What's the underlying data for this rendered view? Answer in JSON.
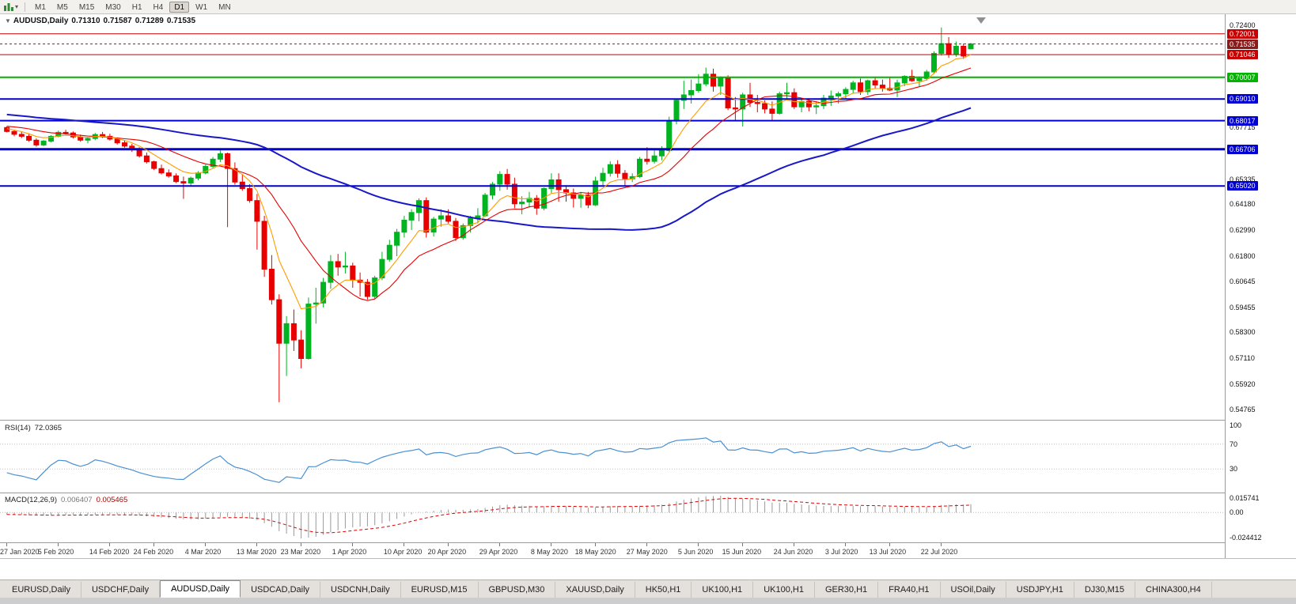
{
  "icons": {
    "dropdown_arrow": "▾",
    "collapse_arrow": "▼"
  },
  "toolbar": {
    "timeframes": [
      "M1",
      "M5",
      "M15",
      "M30",
      "H1",
      "H4",
      "D1",
      "W1",
      "MN"
    ],
    "active_timeframe": "D1"
  },
  "chart": {
    "title": "AUDUSD,Daily",
    "open": "0.71310",
    "high": "0.71587",
    "low": "0.71289",
    "close": "0.71535",
    "colors": {
      "up": "#00b321",
      "down": "#e80000",
      "ma_fast": "#ff9c00",
      "ma_mid": "#e60000",
      "ma_slow": "#1818c8"
    }
  },
  "price_axis": {
    "ticks": [
      "0.72400",
      "0.67715",
      "0.65335",
      "0.64180",
      "0.62990",
      "0.61800",
      "0.60645",
      "0.59455",
      "0.58300",
      "0.57110",
      "0.55920",
      "0.54765"
    ],
    "badges": [
      {
        "text": "0.72001",
        "color": "#c80000",
        "current": false
      },
      {
        "text": "0.71535",
        "color": "#8b1a1a",
        "current": true
      },
      {
        "text": "0.71046",
        "color": "#c80000",
        "current": false
      },
      {
        "text": "0.70007",
        "color": "#00b400",
        "current": false
      },
      {
        "text": "0.69010",
        "color": "#0000d2",
        "current": false
      },
      {
        "text": "0.68017",
        "color": "#0000d2",
        "current": false
      },
      {
        "text": "0.66706",
        "color": "#0000d2",
        "current": false
      },
      {
        "text": "0.65020",
        "color": "#0000d2",
        "current": false
      }
    ]
  },
  "levels": [
    {
      "price": 0.72001,
      "color": "#c80000",
      "width": 1,
      "style": "solid"
    },
    {
      "price": 0.71535,
      "color": "#8b1a1a",
      "width": 1,
      "style": "dash"
    },
    {
      "price": 0.71046,
      "color": "#c80000",
      "width": 1,
      "style": "solid"
    },
    {
      "price": 0.70007,
      "color": "#00b400",
      "width": 2,
      "style": "solid"
    },
    {
      "price": 0.6901,
      "color": "#0000d2",
      "width": 2,
      "style": "solid"
    },
    {
      "price": 0.68017,
      "color": "#0000d2",
      "width": 2,
      "style": "solid"
    },
    {
      "price": 0.66706,
      "color": "#0000d2",
      "width": 3,
      "style": "solid"
    },
    {
      "price": 0.6502,
      "color": "#0000d2",
      "width": 2,
      "style": "solid"
    }
  ],
  "chart_data": {
    "type": "candlestick",
    "symbol": "AUDUSD",
    "timeframe": "Daily",
    "ohlc_current": {
      "open": 0.7131,
      "high": 0.71587,
      "low": 0.71289,
      "close": 0.71535
    },
    "price_range": [
      0.5429,
      0.729
    ],
    "candles": [
      [
        0.677,
        0.6776,
        0.6748,
        0.6752
      ],
      [
        0.6752,
        0.676,
        0.673,
        0.6739
      ],
      [
        0.6739,
        0.675,
        0.6722,
        0.673
      ],
      [
        0.673,
        0.6742,
        0.6705,
        0.6712
      ],
      [
        0.6712,
        0.672,
        0.6682,
        0.669
      ],
      [
        0.669,
        0.6712,
        0.6685,
        0.6708
      ],
      [
        0.6708,
        0.6735,
        0.6702,
        0.673
      ],
      [
        0.673,
        0.6756,
        0.6725,
        0.6748
      ],
      [
        0.6748,
        0.676,
        0.6738,
        0.6745
      ],
      [
        0.6745,
        0.6752,
        0.672,
        0.6727
      ],
      [
        0.6727,
        0.6738,
        0.6705,
        0.6712
      ],
      [
        0.6712,
        0.6725,
        0.6698,
        0.672
      ],
      [
        0.672,
        0.6745,
        0.6712,
        0.6738
      ],
      [
        0.6738,
        0.675,
        0.6722,
        0.673
      ],
      [
        0.673,
        0.6742,
        0.671,
        0.6717
      ],
      [
        0.6717,
        0.6725,
        0.6692,
        0.67
      ],
      [
        0.67,
        0.6712,
        0.6678,
        0.6685
      ],
      [
        0.6685,
        0.6695,
        0.6658,
        0.6668
      ],
      [
        0.6668,
        0.668,
        0.6632,
        0.664
      ],
      [
        0.664,
        0.6655,
        0.6605,
        0.6613
      ],
      [
        0.6613,
        0.6618,
        0.6575,
        0.6582
      ],
      [
        0.6582,
        0.66,
        0.6555,
        0.6562
      ],
      [
        0.6562,
        0.6578,
        0.654,
        0.6548
      ],
      [
        0.6548,
        0.656,
        0.6515,
        0.6522
      ],
      [
        0.6522,
        0.6545,
        0.6443,
        0.6515
      ],
      [
        0.6515,
        0.6545,
        0.6505,
        0.6538
      ],
      [
        0.6538,
        0.657,
        0.6528,
        0.6562
      ],
      [
        0.6562,
        0.66,
        0.6555,
        0.6592
      ],
      [
        0.6592,
        0.6635,
        0.6585,
        0.6625
      ],
      [
        0.6625,
        0.6665,
        0.6612,
        0.665
      ],
      [
        0.665,
        0.6655,
        0.6313,
        0.6582
      ],
      [
        0.6582,
        0.661,
        0.6508,
        0.652
      ],
      [
        0.652,
        0.6555,
        0.648,
        0.649
      ],
      [
        0.649,
        0.651,
        0.6425,
        0.6435
      ],
      [
        0.6435,
        0.6465,
        0.621,
        0.634
      ],
      [
        0.634,
        0.6365,
        0.6085,
        0.612
      ],
      [
        0.612,
        0.6185,
        0.5958,
        0.598
      ],
      [
        0.598,
        0.6005,
        0.551,
        0.578
      ],
      [
        0.578,
        0.5905,
        0.563,
        0.587
      ],
      [
        0.587,
        0.5935,
        0.5745,
        0.5795
      ],
      [
        0.5795,
        0.584,
        0.5665,
        0.571
      ],
      [
        0.571,
        0.599,
        0.5705,
        0.596
      ],
      [
        0.596,
        0.6035,
        0.587,
        0.5965
      ],
      [
        0.5965,
        0.608,
        0.5945,
        0.606
      ],
      [
        0.606,
        0.6185,
        0.603,
        0.6155
      ],
      [
        0.6155,
        0.619,
        0.609,
        0.613
      ],
      [
        0.613,
        0.62,
        0.61,
        0.6135
      ],
      [
        0.6135,
        0.615,
        0.6035,
        0.607
      ],
      [
        0.607,
        0.6105,
        0.5995,
        0.606
      ],
      [
        0.606,
        0.6075,
        0.598,
        0.5995
      ],
      [
        0.5995,
        0.609,
        0.5985,
        0.608
      ],
      [
        0.608,
        0.62,
        0.607,
        0.6165
      ],
      [
        0.6165,
        0.6255,
        0.6155,
        0.623
      ],
      [
        0.623,
        0.6305,
        0.618,
        0.629
      ],
      [
        0.629,
        0.6365,
        0.6265,
        0.6345
      ],
      [
        0.6345,
        0.6395,
        0.63,
        0.638
      ],
      [
        0.638,
        0.6445,
        0.634,
        0.6435
      ],
      [
        0.6435,
        0.645,
        0.6265,
        0.629
      ],
      [
        0.629,
        0.636,
        0.627,
        0.635
      ],
      [
        0.635,
        0.6395,
        0.6315,
        0.6365
      ],
      [
        0.6365,
        0.6395,
        0.633,
        0.634
      ],
      [
        0.634,
        0.6355,
        0.625,
        0.6265
      ],
      [
        0.6265,
        0.633,
        0.6255,
        0.632
      ],
      [
        0.632,
        0.6365,
        0.6288,
        0.6355
      ],
      [
        0.6355,
        0.64,
        0.633,
        0.6365
      ],
      [
        0.6365,
        0.647,
        0.636,
        0.646
      ],
      [
        0.646,
        0.652,
        0.644,
        0.651
      ],
      [
        0.651,
        0.657,
        0.648,
        0.6555
      ],
      [
        0.6555,
        0.658,
        0.6485,
        0.651
      ],
      [
        0.651,
        0.654,
        0.64,
        0.642
      ],
      [
        0.642,
        0.6455,
        0.6372,
        0.6428
      ],
      [
        0.6428,
        0.6475,
        0.6403,
        0.6445
      ],
      [
        0.6445,
        0.646,
        0.637,
        0.64
      ],
      [
        0.64,
        0.6495,
        0.639,
        0.649
      ],
      [
        0.649,
        0.656,
        0.647,
        0.653
      ],
      [
        0.653,
        0.656,
        0.643,
        0.6485
      ],
      [
        0.6485,
        0.6505,
        0.643,
        0.647
      ],
      [
        0.647,
        0.649,
        0.6403,
        0.6445
      ],
      [
        0.6445,
        0.6475,
        0.6402,
        0.646
      ],
      [
        0.646,
        0.6475,
        0.64,
        0.6415
      ],
      [
        0.6415,
        0.6545,
        0.641,
        0.6525
      ],
      [
        0.6525,
        0.6585,
        0.6505,
        0.656
      ],
      [
        0.656,
        0.6615,
        0.6545,
        0.66
      ],
      [
        0.66,
        0.662,
        0.654,
        0.656
      ],
      [
        0.656,
        0.6575,
        0.6505,
        0.6535
      ],
      [
        0.6535,
        0.656,
        0.652,
        0.6545
      ],
      [
        0.6545,
        0.6635,
        0.654,
        0.6625
      ],
      [
        0.6625,
        0.668,
        0.66,
        0.6615
      ],
      [
        0.6615,
        0.6665,
        0.6605,
        0.664
      ],
      [
        0.664,
        0.6685,
        0.662,
        0.6665
      ],
      [
        0.6665,
        0.682,
        0.666,
        0.68
      ],
      [
        0.68,
        0.69,
        0.6785,
        0.6895
      ],
      [
        0.6895,
        0.6985,
        0.6855,
        0.692
      ],
      [
        0.692,
        0.699,
        0.688,
        0.694
      ],
      [
        0.694,
        0.7015,
        0.693,
        0.697
      ],
      [
        0.697,
        0.7045,
        0.696,
        0.7015
      ],
      [
        0.7015,
        0.704,
        0.6935,
        0.696
      ],
      [
        0.696,
        0.7005,
        0.692,
        0.7
      ],
      [
        0.7,
        0.701,
        0.685,
        0.686
      ],
      [
        0.686,
        0.691,
        0.68,
        0.6855
      ],
      [
        0.6855,
        0.693,
        0.6775,
        0.692
      ],
      [
        0.692,
        0.6975,
        0.6865,
        0.6885
      ],
      [
        0.6885,
        0.692,
        0.684,
        0.688
      ],
      [
        0.688,
        0.6895,
        0.6835,
        0.6855
      ],
      [
        0.6855,
        0.689,
        0.6805,
        0.6835
      ],
      [
        0.6835,
        0.6935,
        0.683,
        0.6925
      ],
      [
        0.6925,
        0.6975,
        0.69,
        0.693
      ],
      [
        0.693,
        0.695,
        0.6855,
        0.6865
      ],
      [
        0.6865,
        0.69,
        0.684,
        0.689
      ],
      [
        0.689,
        0.6905,
        0.6845,
        0.6865
      ],
      [
        0.6865,
        0.689,
        0.6832,
        0.687
      ],
      [
        0.687,
        0.692,
        0.6855,
        0.6905
      ],
      [
        0.6905,
        0.694,
        0.687,
        0.6915
      ],
      [
        0.6915,
        0.6935,
        0.688,
        0.6925
      ],
      [
        0.6925,
        0.6955,
        0.69,
        0.6945
      ],
      [
        0.6945,
        0.6985,
        0.6925,
        0.6975
      ],
      [
        0.6975,
        0.6995,
        0.692,
        0.6935
      ],
      [
        0.6935,
        0.699,
        0.692,
        0.6985
      ],
      [
        0.6985,
        0.7,
        0.695,
        0.6965
      ],
      [
        0.6965,
        0.699,
        0.6935,
        0.695
      ],
      [
        0.695,
        0.7,
        0.6938,
        0.6942
      ],
      [
        0.6942,
        0.699,
        0.691,
        0.6975
      ],
      [
        0.6975,
        0.701,
        0.696,
        0.7005
      ],
      [
        0.7005,
        0.7035,
        0.698,
        0.6985
      ],
      [
        0.6985,
        0.7005,
        0.6955,
        0.6995
      ],
      [
        0.6995,
        0.7035,
        0.6985,
        0.7025
      ],
      [
        0.7025,
        0.712,
        0.7015,
        0.711
      ],
      [
        0.711,
        0.7229,
        0.71,
        0.7155
      ],
      [
        0.7155,
        0.7185,
        0.709,
        0.7105
      ],
      [
        0.7105,
        0.7165,
        0.7095,
        0.7143
      ],
      [
        0.7143,
        0.7155,
        0.7085,
        0.7098
      ],
      [
        0.7131,
        0.71587,
        0.71289,
        0.71535
      ]
    ],
    "date_ticks": [
      {
        "label": "27 Jan 2020",
        "i": 0
      },
      {
        "label": "5 Feb 2020",
        "i": 7
      },
      {
        "label": "14 Feb 2020",
        "i": 14
      },
      {
        "label": "24 Feb 2020",
        "i": 20
      },
      {
        "label": "4 Mar 2020",
        "i": 27
      },
      {
        "label": "13 Mar 2020",
        "i": 34
      },
      {
        "label": "23 Mar 2020",
        "i": 40
      },
      {
        "label": "1 Apr 2020",
        "i": 47
      },
      {
        "label": "10 Apr 2020",
        "i": 54
      },
      {
        "label": "20 Apr 2020",
        "i": 60
      },
      {
        "label": "29 Apr 2020",
        "i": 67
      },
      {
        "label": "8 May 2020",
        "i": 74
      },
      {
        "label": "18 May 2020",
        "i": 80
      },
      {
        "label": "27 May 2020",
        "i": 87
      },
      {
        "label": "5 Jun 2020",
        "i": 94
      },
      {
        "label": "15 Jun 2020",
        "i": 100
      },
      {
        "label": "24 Jun 2020",
        "i": 107
      },
      {
        "label": "3 Jul 2020",
        "i": 114
      },
      {
        "label": "13 Jul 2020",
        "i": 120
      },
      {
        "label": "22 Jul 2020",
        "i": 127
      }
    ]
  },
  "rsi_panel": {
    "name": "RSI(14)",
    "value": "72.0365",
    "axis": [
      "100",
      "70",
      "30"
    ],
    "levels": [
      70,
      30
    ],
    "color": "#4a90d2"
  },
  "macd_panel": {
    "name": "MACD(12,26,9)",
    "value_main": "0.006407",
    "value_signal": "0.005465",
    "axis_top": "0.015741",
    "axis_zero": "0.00",
    "axis_bottom": "-0.024412",
    "hist_color": "#9a9a9a",
    "signal_color": "#e00000"
  },
  "tabs": {
    "active_index": 2,
    "items": [
      "EURUSD,Daily",
      "USDCHF,Daily",
      "AUDUSD,Daily",
      "USDCAD,Daily",
      "USDCNH,Daily",
      "EURUSD,M15",
      "GBPUSD,M30",
      "XAUUSD,Daily",
      "HK50,H1",
      "UK100,H1",
      "UK100,H1",
      "GER30,H1",
      "FRA40,H1",
      "USOil,Daily",
      "USDJPY,H1",
      "DJ30,M15",
      "CHINA300,H4"
    ]
  }
}
